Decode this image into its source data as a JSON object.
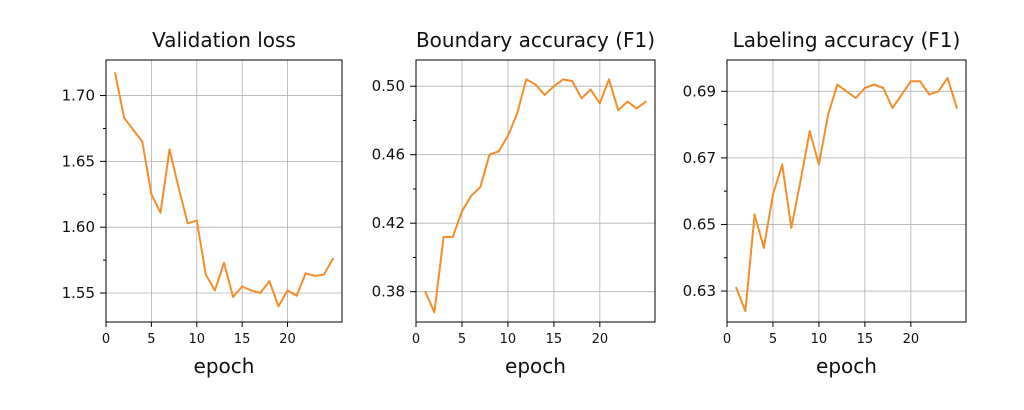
{
  "colors": {
    "series": "#F28E2B",
    "grid": "#b0b0b0",
    "axis": "#000000"
  },
  "chart_data": [
    {
      "type": "line",
      "title": "Validation loss",
      "xlabel": "epoch",
      "ylabel": "",
      "grid": true,
      "xlim": [
        0,
        26
      ],
      "ylim": [
        1.528,
        1.727
      ],
      "xticks": [
        0,
        5,
        10,
        15,
        20
      ],
      "xtick_labels": [
        "0",
        "5",
        "10",
        "15",
        "20"
      ],
      "yticks": [
        1.55,
        1.6,
        1.65,
        1.7
      ],
      "ytick_labels": [
        "1.55",
        "1.60",
        "1.65",
        "1.70"
      ],
      "minor_yticks": [
        1.575,
        1.625,
        1.675
      ],
      "series": [
        {
          "name": "validation loss",
          "x": [
            1,
            2,
            3,
            4,
            5,
            6,
            7,
            8,
            9,
            10,
            11,
            12,
            13,
            14,
            15,
            16,
            17,
            18,
            19,
            20,
            21,
            22,
            23,
            24,
            25
          ],
          "y": [
            1.717,
            1.683,
            1.674,
            1.665,
            1.625,
            1.611,
            1.659,
            1.63,
            1.603,
            1.605,
            1.564,
            1.552,
            1.573,
            1.547,
            1.555,
            1.552,
            1.55,
            1.559,
            1.54,
            1.552,
            1.548,
            1.565,
            1.563,
            1.564,
            1.576
          ]
        }
      ]
    },
    {
      "type": "line",
      "title": "Boundary accuracy (F1)",
      "xlabel": "epoch",
      "ylabel": "",
      "grid": true,
      "xlim": [
        0,
        26
      ],
      "ylim": [
        0.3623,
        0.5153
      ],
      "xticks": [
        0,
        5,
        10,
        15,
        20
      ],
      "xtick_labels": [
        "0",
        "5",
        "10",
        "15",
        "20"
      ],
      "yticks": [
        0.38,
        0.42,
        0.46,
        0.5
      ],
      "ytick_labels": [
        "0.38",
        "0.42",
        "0.46",
        "0.50"
      ],
      "minor_yticks": [
        0.4,
        0.44,
        0.48
      ],
      "series": [
        {
          "name": "boundary F1",
          "x": [
            1,
            2,
            3,
            4,
            5,
            6,
            7,
            8,
            9,
            10,
            11,
            12,
            13,
            14,
            15,
            16,
            17,
            18,
            19,
            20,
            21,
            22,
            23,
            24,
            25
          ],
          "y": [
            0.38,
            0.368,
            0.412,
            0.412,
            0.427,
            0.436,
            0.441,
            0.46,
            0.462,
            0.471,
            0.484,
            0.504,
            0.501,
            0.495,
            0.5,
            0.504,
            0.503,
            0.493,
            0.498,
            0.49,
            0.504,
            0.486,
            0.491,
            0.487,
            0.491
          ]
        }
      ]
    },
    {
      "type": "line",
      "title": "Labeling accuracy (F1)",
      "xlabel": "epoch",
      "ylabel": "",
      "grid": true,
      "xlim": [
        0,
        26
      ],
      "ylim": [
        0.6207,
        0.6994
      ],
      "xticks": [
        0,
        5,
        10,
        15,
        20
      ],
      "xtick_labels": [
        "0",
        "5",
        "10",
        "15",
        "20"
      ],
      "yticks": [
        0.63,
        0.65,
        0.67,
        0.69
      ],
      "ytick_labels": [
        "0.63",
        "0.65",
        "0.67",
        "0.69"
      ],
      "minor_yticks": [
        0.64,
        0.66,
        0.68
      ],
      "series": [
        {
          "name": "labeling F1",
          "x": [
            1,
            2,
            3,
            4,
            5,
            6,
            7,
            8,
            9,
            10,
            11,
            12,
            13,
            14,
            15,
            16,
            17,
            18,
            19,
            20,
            21,
            22,
            23,
            24,
            25
          ],
          "y": [
            0.631,
            0.624,
            0.653,
            0.643,
            0.659,
            0.668,
            0.649,
            0.663,
            0.678,
            0.668,
            0.683,
            0.692,
            0.69,
            0.688,
            0.691,
            0.692,
            0.691,
            0.685,
            0.689,
            0.693,
            0.693,
            0.689,
            0.69,
            0.694,
            0.685
          ]
        }
      ]
    }
  ]
}
